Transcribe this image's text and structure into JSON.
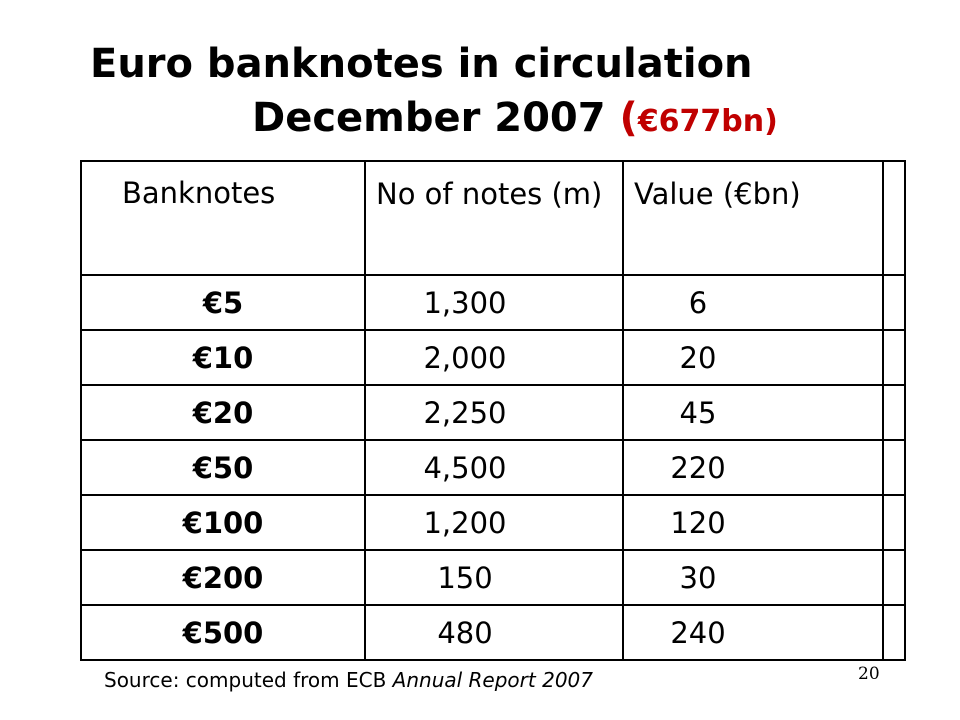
{
  "title": {
    "line1": "Euro banknotes in circulation",
    "line2": "December 2007",
    "paren_open": "(",
    "amount": "€677bn",
    "paren_close": ")"
  },
  "table": {
    "headers": [
      "Banknotes",
      "No of notes (m)",
      "Value  (€bn)"
    ],
    "rows": [
      {
        "denomination": "€5",
        "notes": "1,300",
        "value": "6"
      },
      {
        "denomination": "€10",
        "notes": "2,000",
        "value": "20"
      },
      {
        "denomination": "€20",
        "notes": "2,250",
        "value": "45"
      },
      {
        "denomination": "€50",
        "notes": "4,500",
        "value": "220"
      },
      {
        "denomination": "€100",
        "notes": "1,200",
        "value": "120"
      },
      {
        "denomination": "€200",
        "notes": "150",
        "value": "30"
      },
      {
        "denomination": "€500",
        "notes": "480",
        "value": "240"
      }
    ]
  },
  "source": {
    "prefix": "Source: computed from  ECB ",
    "publication": "Annual Report  2007"
  },
  "page_number": "20",
  "colors": {
    "accent": "#c00000",
    "text": "#000000",
    "background": "#ffffff"
  }
}
